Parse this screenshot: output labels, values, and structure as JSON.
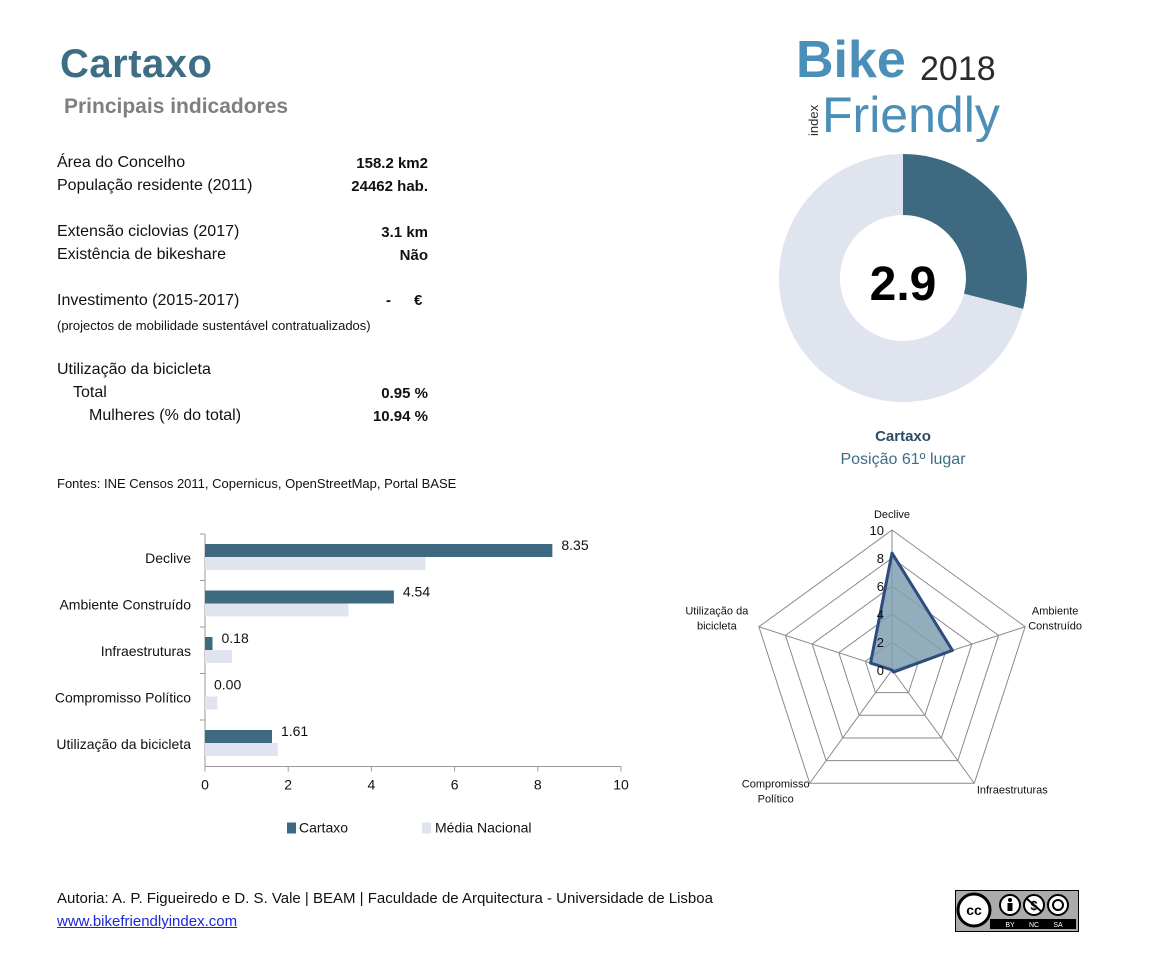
{
  "header": {
    "title": "Cartaxo",
    "subtitle": "Principais indicadores"
  },
  "logo": {
    "word1": "Bike",
    "word2": "Friendly",
    "year": "2018",
    "side": "index",
    "colors": {
      "blue": "#4a8fb7",
      "dark": "#2b2b2b"
    }
  },
  "indicators": {
    "area": {
      "label": "Área do Concelho",
      "value": "158.2 km2"
    },
    "population": {
      "label": "População residente (2011)",
      "value": "24462 hab."
    },
    "cycleways": {
      "label": "Extensão ciclovias (2017)",
      "value": "3.1 km"
    },
    "bikeshare": {
      "label": "Existência de bikeshare",
      "value": "Não"
    },
    "investment": {
      "label": "Investimento (2015-2017)",
      "value": "-",
      "unit": "€"
    },
    "investment_note": "(projectos de mobilidade sustentável contratualizados)",
    "usage_title": "Utilização da bicicleta",
    "usage_total": {
      "label": "Total",
      "value": "0.95 %"
    },
    "usage_women": {
      "label": "Mulheres (% do total)",
      "value": "10.94 %"
    }
  },
  "sources": "Fontes: INE Censos 2011, Copernicus, OpenStreetMap,  Portal BASE",
  "score": {
    "value": "2.9",
    "fraction": 0.29,
    "municipality": "Cartaxo",
    "rank_text": "Posição 61º lugar",
    "colors": {
      "filled": "#3d6a80",
      "remaining": "#dfe4ef"
    }
  },
  "footer": {
    "authors": "Autoria: A. P. Figueiredo e D. S. Vale | BEAM | Faculdade de Arquitectura - Universidade de Lisboa",
    "link": "www.bikefriendlyindex.com",
    "license": {
      "icons": [
        "cc-icon",
        "by-icon",
        "nc-icon",
        "sa-icon"
      ],
      "labels": [
        "BY",
        "NC",
        "SA"
      ]
    }
  },
  "chart_data": [
    {
      "type": "bar",
      "orientation": "horizontal",
      "categories": [
        "Declive",
        "Ambiente Construído",
        "Infraestruturas",
        "Compromisso Político",
        "Utilização da bicicleta"
      ],
      "series": [
        {
          "name": "Cartaxo",
          "values": [
            8.35,
            4.54,
            0.18,
            0.0,
            1.61
          ],
          "color": "#3d6a80",
          "labels": [
            "8.35",
            "4.54",
            "0.18",
            "0.00",
            "1.61"
          ]
        },
        {
          "name": "Média Nacional",
          "values": [
            5.3,
            3.45,
            0.65,
            0.3,
            1.75
          ],
          "color": "#dfe4ef"
        }
      ],
      "xlim": [
        0,
        10
      ],
      "xticks": [
        "0",
        "2",
        "4",
        "6",
        "8",
        "10"
      ],
      "legend": "bottom"
    },
    {
      "type": "radar",
      "axes": [
        "Declive",
        "Ambiente Construído",
        "Infraestruturas",
        "Compromisso Político",
        "Utilização da bicicleta"
      ],
      "axis_labels": [
        [
          "Declive"
        ],
        [
          "Ambiente",
          "Construído"
        ],
        [
          "Infraestruturas"
        ],
        [
          "Compromisso",
          "Político"
        ],
        [
          "Utilização da",
          "bicicleta"
        ]
      ],
      "values": [
        8.35,
        4.54,
        0.18,
        0.0,
        1.61
      ],
      "rlim": [
        0,
        10
      ],
      "rticks": [
        "0",
        "2",
        "4",
        "6",
        "8",
        "10"
      ],
      "colors": {
        "line": "#2f4c7e",
        "fill": "#7f9fb0"
      }
    }
  ]
}
